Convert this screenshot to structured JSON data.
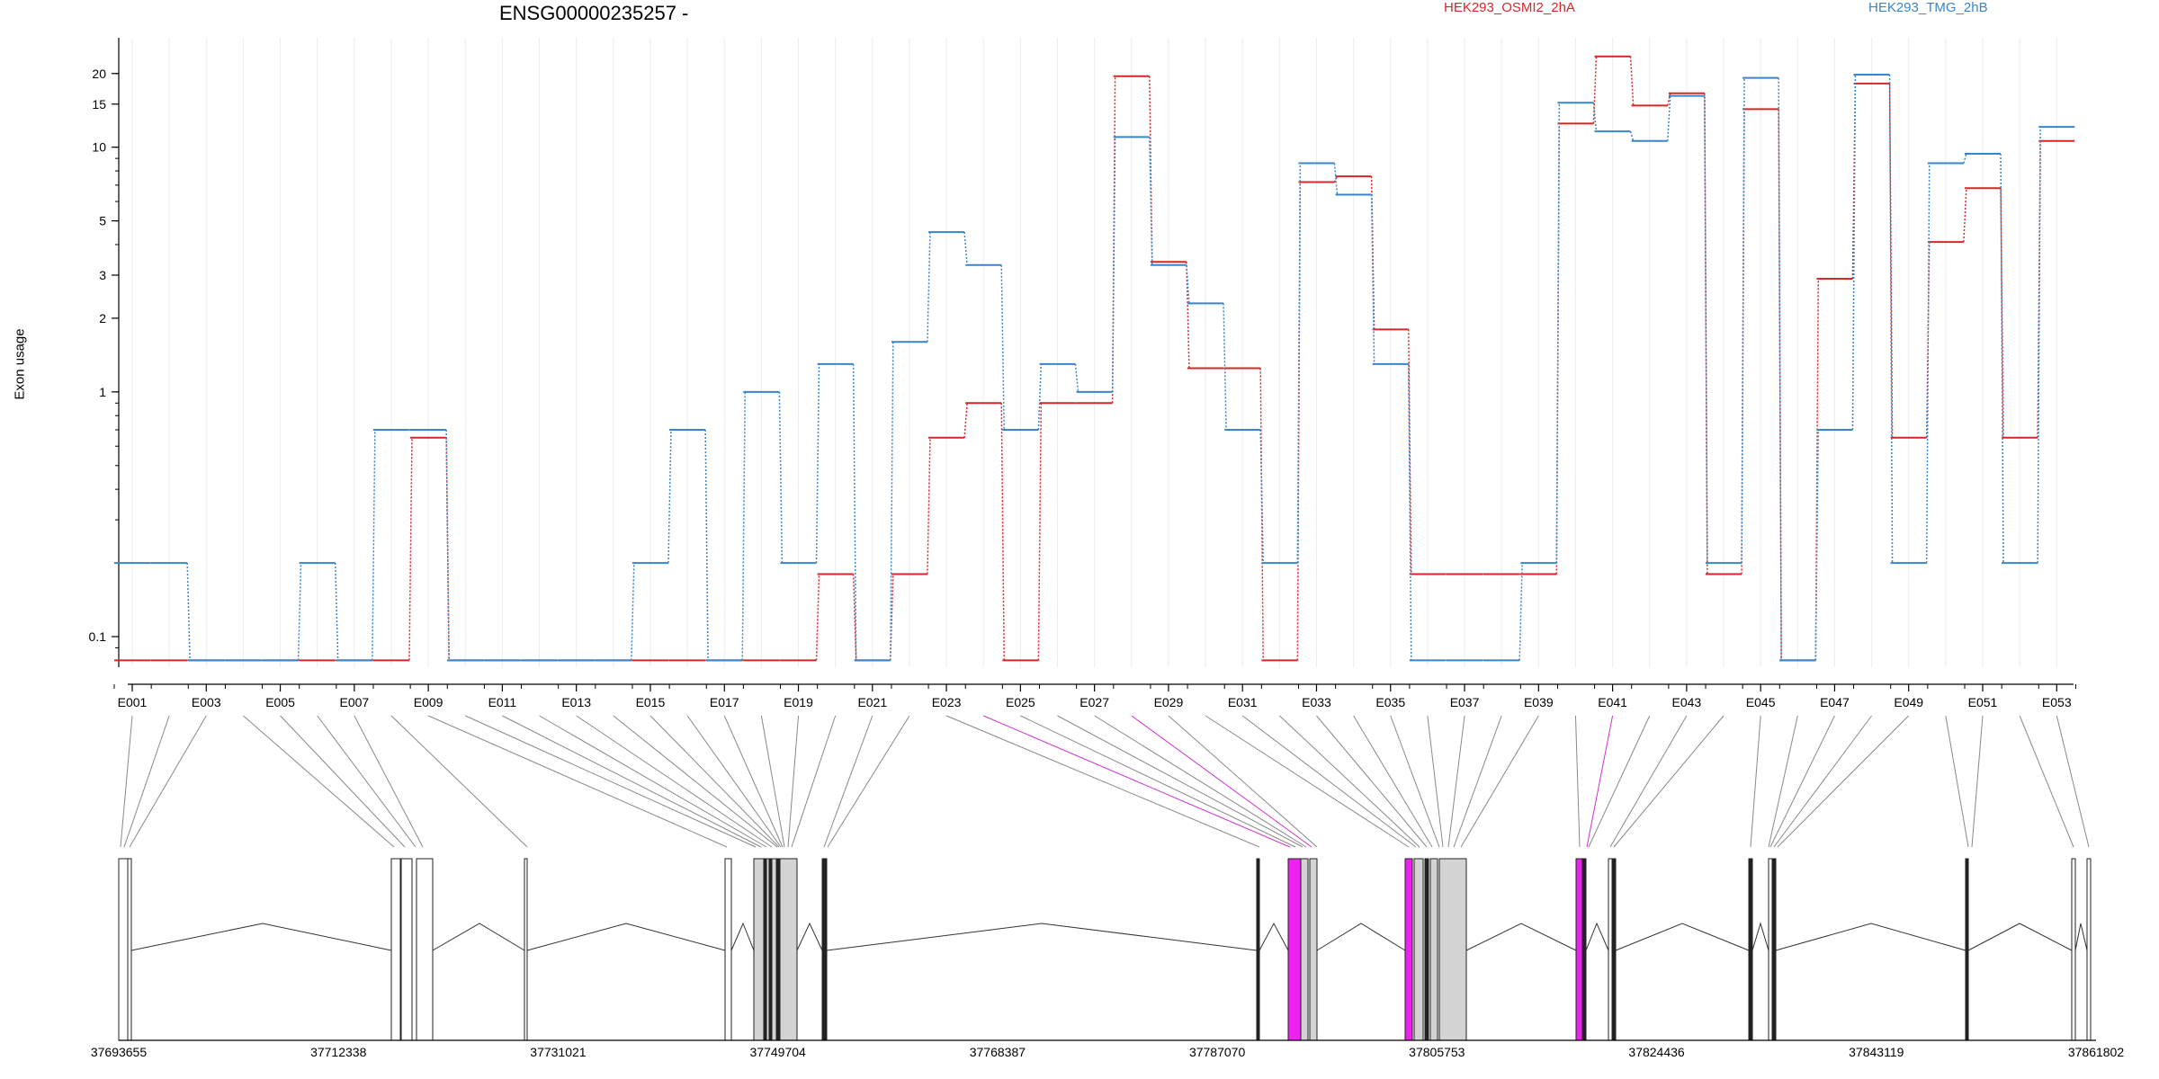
{
  "chart_data": {
    "type": "line",
    "title": "ENSG00000235257 -",
    "ylabel": "Exon usage",
    "yscale": "log",
    "ylim": [
      0.075,
      28
    ],
    "y_ticks": [
      0.1,
      1,
      2,
      3,
      5,
      10,
      15,
      20
    ],
    "y_tick_labels": [
      "0.1",
      "1",
      "2",
      "3",
      "5",
      "10",
      "15",
      "20"
    ],
    "legend": [
      {
        "name": "HEK293_OSMI2_2hA",
        "color": "#d62728"
      },
      {
        "name": "HEK293_TMG_2hB",
        "color": "#3a85c8"
      }
    ],
    "categories": [
      "E001",
      "E002",
      "E003",
      "E004",
      "E005",
      "E006",
      "E007",
      "E008",
      "E009",
      "E010",
      "E011",
      "E012",
      "E013",
      "E014",
      "E015",
      "E016",
      "E017",
      "E018",
      "E019",
      "E020",
      "E021",
      "E022",
      "E023",
      "E024",
      "E025",
      "E026",
      "E027",
      "E028",
      "E029",
      "E030",
      "E031",
      "E032",
      "E033",
      "E034",
      "E035",
      "E036",
      "E037",
      "E038",
      "E039",
      "E040",
      "E041",
      "E042",
      "E043",
      "E044",
      "E045",
      "E046",
      "E047",
      "E048",
      "E049",
      "E050",
      "E051",
      "E052",
      "E053"
    ],
    "x_tick_labels": [
      "E001",
      "E003",
      "E005",
      "E007",
      "E009",
      "E011",
      "E013",
      "E015",
      "E017",
      "E019",
      "E021",
      "E023",
      "E025",
      "E027",
      "E029",
      "E031",
      "E033",
      "E035",
      "E037",
      "E039",
      "E041",
      "E043",
      "E045",
      "E047",
      "E049",
      "E051",
      "E053"
    ],
    "series": [
      {
        "name": "HEK293_OSMI2_2hA",
        "color": "#d62728",
        "values": [
          0.08,
          0.08,
          0.08,
          0.08,
          0.08,
          0.08,
          0.08,
          0.08,
          0.65,
          0.08,
          0.08,
          0.08,
          0.08,
          0.08,
          0.08,
          0.08,
          0.08,
          0.08,
          0.08,
          0.18,
          0.08,
          0.18,
          0.65,
          0.9,
          0.08,
          0.9,
          0.9,
          19.5,
          3.4,
          1.25,
          1.25,
          0.08,
          7.2,
          7.6,
          1.8,
          0.18,
          0.18,
          0.18,
          0.18,
          12.5,
          23.5,
          14.8,
          16.6,
          0.18,
          14.3,
          0.08,
          2.9,
          18.2,
          0.65,
          4.1,
          6.8,
          0.65,
          10.6
        ]
      },
      {
        "name": "HEK293_TMG_2hB",
        "color": "#3a85c8",
        "values": [
          0.2,
          0.2,
          0.08,
          0.08,
          0.08,
          0.2,
          0.08,
          0.7,
          0.7,
          0.08,
          0.08,
          0.08,
          0.08,
          0.08,
          0.2,
          0.7,
          0.08,
          1.0,
          0.2,
          1.3,
          0.08,
          1.6,
          4.5,
          3.3,
          0.7,
          1.3,
          1.0,
          11.0,
          3.3,
          2.3,
          0.7,
          0.2,
          8.6,
          6.4,
          1.3,
          0.08,
          0.08,
          0.08,
          0.2,
          15.2,
          11.6,
          10.6,
          16.2,
          0.2,
          19.2,
          0.08,
          0.7,
          19.8,
          0.2,
          8.6,
          9.4,
          0.2,
          12.1
        ]
      }
    ],
    "genomic_axis_labels": [
      "37693655",
      "37712338",
      "37731021",
      "37749704",
      "37768387",
      "37787070",
      "37805753",
      "37824436",
      "37843119",
      "37861802"
    ],
    "gene_model": {
      "exon_fill": "#ffffff",
      "intron_color": "#333333",
      "shared_region_fill": "#d3d3d3",
      "highlight_fill": "#ee22ee"
    }
  }
}
